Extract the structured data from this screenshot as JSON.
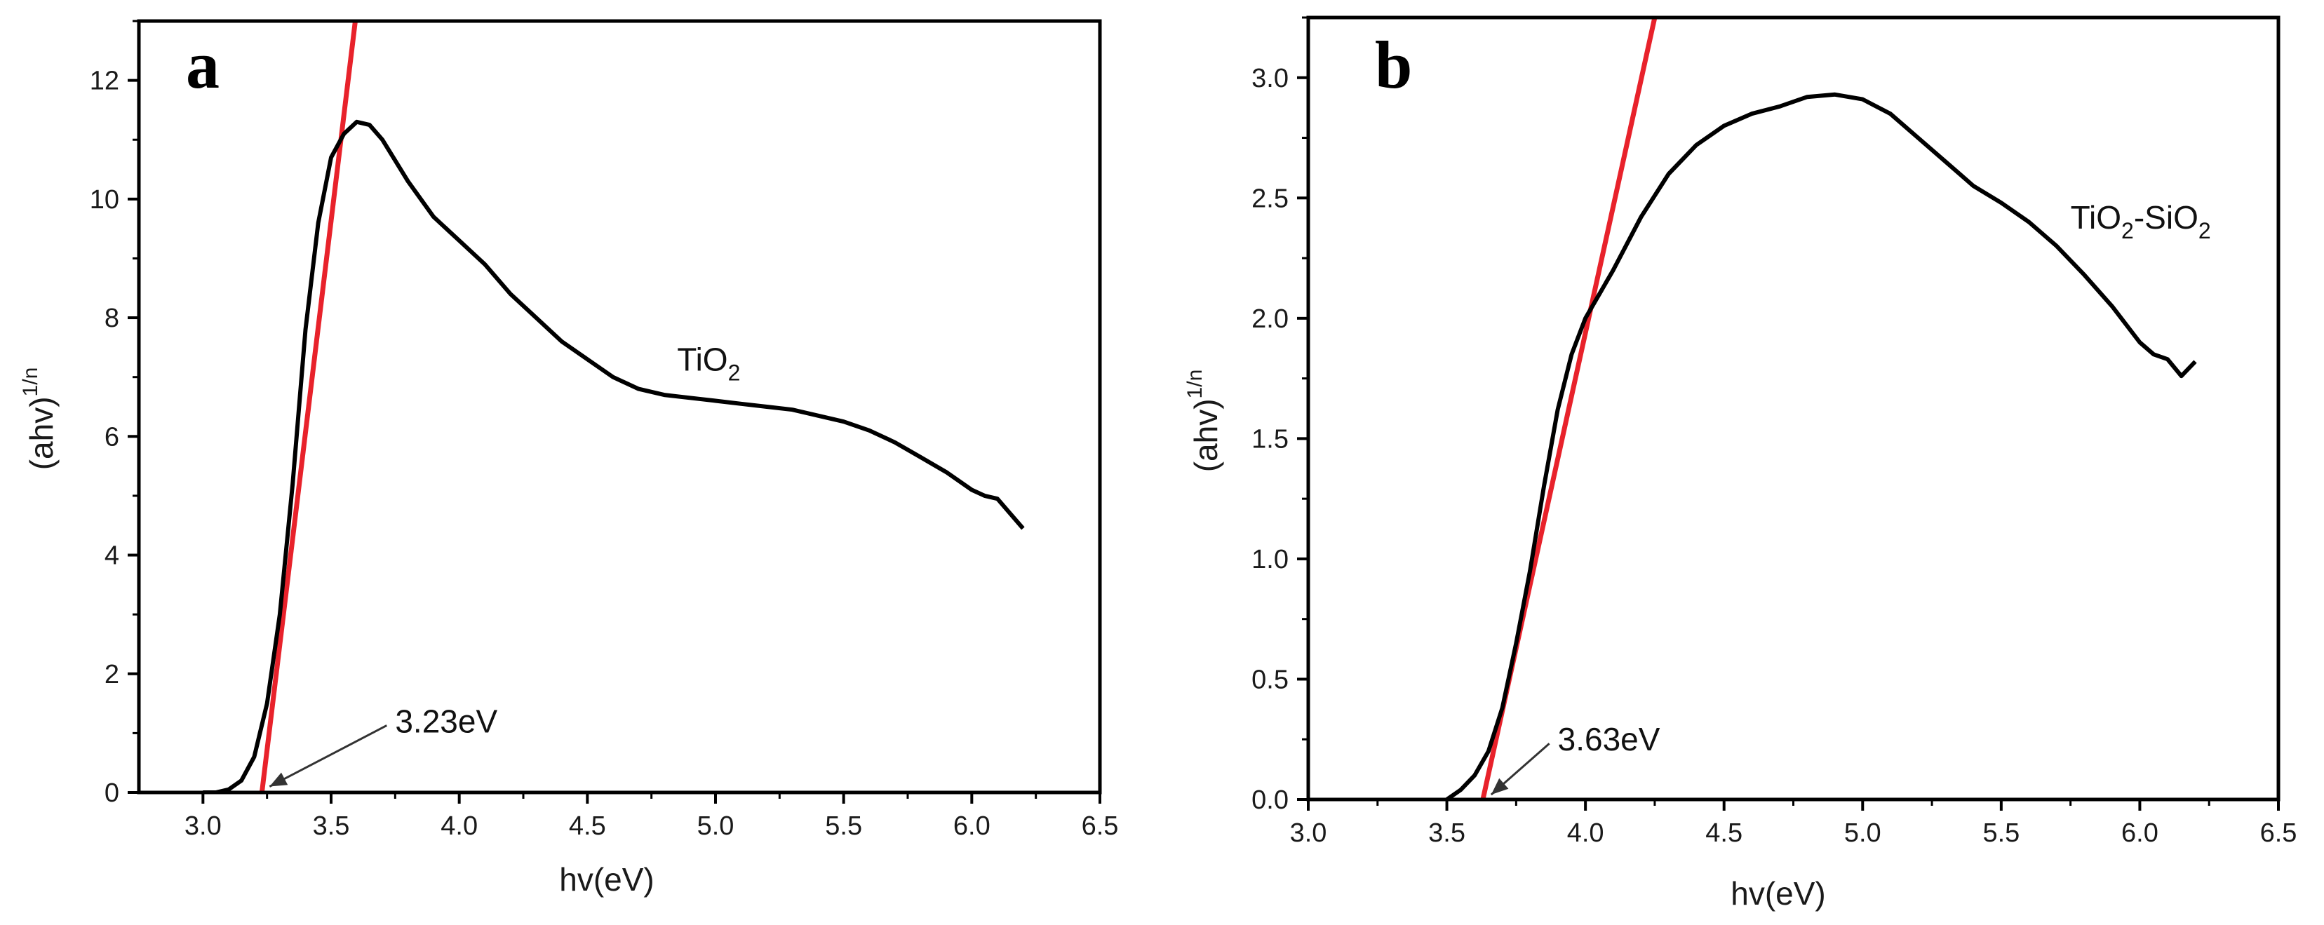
{
  "colors": {
    "curve": "#000000",
    "fit": "#e8222b",
    "axis": "#000000"
  },
  "chart_data": [
    {
      "type": "line",
      "panel": "a",
      "xlabel": "hv(eV)",
      "ylabel": "(ahv)",
      "ylabel_sup": "1/n",
      "xlim": [
        2.75,
        6.5
      ],
      "ylim": [
        0,
        13
      ],
      "xticks": [
        3.0,
        3.5,
        4.0,
        4.5,
        5.0,
        5.5,
        6.0,
        6.5
      ],
      "xtick_labels": [
        "3.0",
        "3.5",
        "4.0",
        "4.5",
        "5.0",
        "5.5",
        "6.0",
        "6.5"
      ],
      "yticks": [
        0,
        2,
        4,
        6,
        8,
        10,
        12
      ],
      "ytick_labels": [
        "0",
        "2",
        "4",
        "6",
        "8",
        "10",
        "12"
      ],
      "series": [
        {
          "name": "TiO2",
          "x": [
            3.0,
            3.05,
            3.1,
            3.15,
            3.2,
            3.25,
            3.3,
            3.35,
            3.4,
            3.45,
            3.5,
            3.55,
            3.6,
            3.65,
            3.7,
            3.8,
            3.9,
            4.0,
            4.1,
            4.2,
            4.3,
            4.4,
            4.5,
            4.6,
            4.7,
            4.8,
            4.9,
            5.0,
            5.1,
            5.2,
            5.3,
            5.4,
            5.5,
            5.6,
            5.7,
            5.8,
            5.9,
            6.0,
            6.05,
            6.1,
            6.15,
            6.2
          ],
          "y": [
            0.0,
            0.0,
            0.05,
            0.2,
            0.6,
            1.5,
            3.0,
            5.2,
            7.8,
            9.6,
            10.7,
            11.1,
            11.3,
            11.25,
            11.0,
            10.3,
            9.7,
            9.3,
            8.9,
            8.4,
            8.0,
            7.6,
            7.3,
            7.0,
            6.8,
            6.7,
            6.65,
            6.6,
            6.55,
            6.5,
            6.45,
            6.35,
            6.25,
            6.1,
            5.9,
            5.65,
            5.4,
            5.1,
            5.0,
            4.95,
            4.7,
            4.45
          ]
        }
      ],
      "fit_line": {
        "x": [
          3.23,
          3.6
        ],
        "y": [
          0,
          13.2
        ]
      },
      "annotations": [
        {
          "text": "TiO2",
          "base": "TiO",
          "sub": "2",
          "x": 4.85,
          "y": 7.3
        },
        {
          "text": "3.23eV",
          "x": 3.75,
          "y": 1.2,
          "arrow_to": [
            3.26,
            0.1
          ]
        }
      ]
    },
    {
      "type": "line",
      "panel": "b",
      "xlabel": "hv(eV)",
      "ylabel": "(ahv)",
      "ylabel_sup": "1/n",
      "xlim": [
        3.0,
        6.5
      ],
      "ylim": [
        0,
        3.25
      ],
      "xticks": [
        3.0,
        3.5,
        4.0,
        4.5,
        5.0,
        5.5,
        6.0,
        6.5
      ],
      "xtick_labels": [
        "3.0",
        "3.5",
        "4.0",
        "4.5",
        "5.0",
        "5.5",
        "6.0",
        "6.5"
      ],
      "yticks": [
        0.0,
        0.5,
        1.0,
        1.5,
        2.0,
        2.5,
        3.0
      ],
      "ytick_labels": [
        "0.0",
        "0.5",
        "1.0",
        "1.5",
        "2.0",
        "2.5",
        "3.0"
      ],
      "series": [
        {
          "name": "TiO2-SiO2",
          "x": [
            3.5,
            3.55,
            3.6,
            3.65,
            3.7,
            3.75,
            3.8,
            3.85,
            3.9,
            3.95,
            4.0,
            4.1,
            4.2,
            4.3,
            4.4,
            4.5,
            4.6,
            4.7,
            4.8,
            4.9,
            5.0,
            5.1,
            5.2,
            5.3,
            5.4,
            5.5,
            5.6,
            5.7,
            5.8,
            5.9,
            6.0,
            6.05,
            6.1,
            6.15,
            6.2
          ],
          "y": [
            0.0,
            0.04,
            0.1,
            0.2,
            0.38,
            0.65,
            0.95,
            1.3,
            1.62,
            1.85,
            2.0,
            2.2,
            2.42,
            2.6,
            2.72,
            2.8,
            2.85,
            2.88,
            2.92,
            2.93,
            2.91,
            2.85,
            2.75,
            2.65,
            2.55,
            2.48,
            2.4,
            2.3,
            2.18,
            2.05,
            1.9,
            1.85,
            1.83,
            1.76,
            1.82
          ]
        }
      ],
      "fit_line": {
        "x": [
          3.63,
          4.25
        ],
        "y": [
          0,
          3.25
        ]
      },
      "annotations": [
        {
          "text": "TiO2-SiO2",
          "base": "TiO",
          "sub": "2",
          "rest": "-SiO",
          "sub2": "2",
          "x": 5.75,
          "y": 2.42
        },
        {
          "text": "3.63eV",
          "x": 3.9,
          "y": 0.25,
          "arrow_to": [
            3.66,
            0.02
          ]
        }
      ]
    }
  ]
}
